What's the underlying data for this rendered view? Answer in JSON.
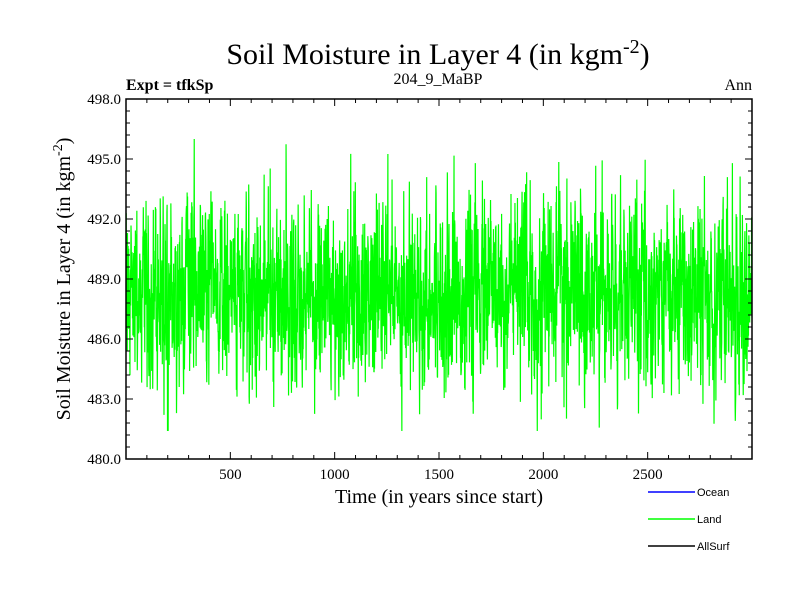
{
  "chart_data": {
    "type": "line",
    "title": "Soil Moisture in Layer 4 (in kgm",
    "title_sup": "-2",
    "title_close": ")",
    "subtitle_left": "Expt = tfkSp",
    "subtitle_center": "204_9_MaBP",
    "subtitle_right": "Ann",
    "xlabel": "Time (in years since start)",
    "ylabel": "Soil Moisture in Layer 4 (in kgm",
    "ylabel_sup": "-2",
    "ylabel_close": ")",
    "xlim": [
      0,
      3000
    ],
    "ylim": [
      480.0,
      498.0
    ],
    "xticks": [
      500,
      1000,
      1500,
      2000,
      2500
    ],
    "xtick_labels": [
      "500",
      "1000",
      "1500",
      "2000",
      "2500"
    ],
    "yticks": [
      480.0,
      483.0,
      486.0,
      489.0,
      492.0,
      495.0,
      498.0
    ],
    "ytick_labels": [
      "480.0",
      "483.0",
      "486.0",
      "489.0",
      "492.0",
      "495.0",
      "498.0"
    ],
    "grid": false,
    "legend_position": "bottom-right",
    "series": [
      {
        "name": "Ocean",
        "color": "#0000ff",
        "values": []
      },
      {
        "name": "Land",
        "color": "#00ff00",
        "mean": 488.3,
        "std": 2.3,
        "min": 481.4,
        "max": 496.0,
        "n_points": 3000,
        "x_start": 1
      },
      {
        "name": "AllSurf",
        "color": "#000000",
        "values": []
      }
    ]
  }
}
